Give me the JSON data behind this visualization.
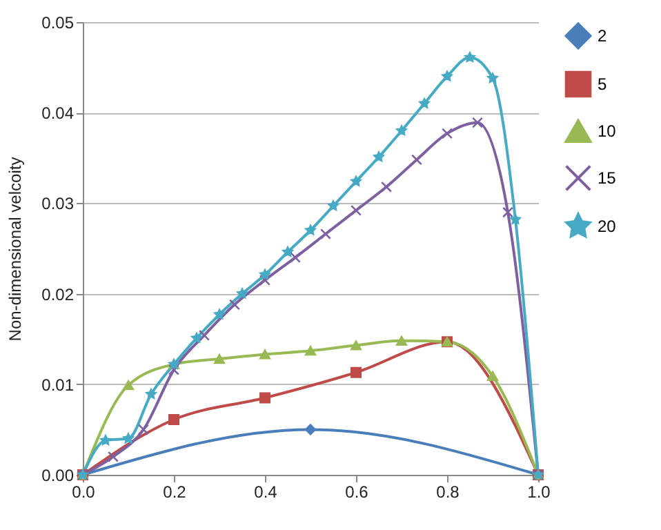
{
  "chart_data": {
    "type": "line",
    "ylabel": "Non-dimensional velcoity",
    "xlim": [
      0,
      1
    ],
    "ylim": [
      0,
      0.05
    ],
    "xticks": [
      {
        "value": 0,
        "label": "0.0"
      },
      {
        "value": 0.2,
        "label": "0.2"
      },
      {
        "value": 0.4,
        "label": "0.4"
      },
      {
        "value": 0.6,
        "label": "0.6"
      },
      {
        "value": 0.8,
        "label": "0.8"
      },
      {
        "value": 1,
        "label": "1.0"
      }
    ],
    "yticks": [
      {
        "value": 0,
        "label": "0.00"
      },
      {
        "value": 0.01,
        "label": "0.01"
      },
      {
        "value": 0.02,
        "label": "0.02"
      },
      {
        "value": 0.03,
        "label": "0.03"
      },
      {
        "value": 0.04,
        "label": "0.04"
      },
      {
        "value": 0.05,
        "label": "0.05"
      }
    ],
    "grid": "y",
    "legend": "right",
    "line_style": "solid",
    "series": [
      {
        "name": "2",
        "color": "#4a7ebb",
        "marker": "diamond",
        "x": [
          0,
          0.5,
          1
        ],
        "values": [
          0,
          0.005,
          0
        ]
      },
      {
        "name": "5",
        "color": "#be4b48",
        "marker": "square",
        "x": [
          0,
          0.2,
          0.4,
          0.6,
          0.8,
          1
        ],
        "values": [
          0,
          0.0061,
          0.0085,
          0.0113,
          0.0147,
          0
        ]
      },
      {
        "name": "10",
        "color": "#98b954",
        "marker": "triangle",
        "x": [
          0,
          0.1,
          0.2,
          0.3,
          0.4,
          0.5,
          0.6,
          0.7,
          0.8,
          0.9,
          1
        ],
        "values": [
          0,
          0.0099,
          0.0122,
          0.0128,
          0.0133,
          0.0137,
          0.0143,
          0.0148,
          0.0147,
          0.0109,
          0
        ]
      },
      {
        "name": "15",
        "color": "#7d60a0",
        "marker": "cross",
        "x": [
          0,
          0.0667,
          0.1333,
          0.2,
          0.2667,
          0.3333,
          0.4,
          0.4667,
          0.5333,
          0.6,
          0.6667,
          0.7333,
          0.8,
          0.8667,
          0.9333,
          1
        ],
        "values": [
          0,
          0.002,
          0.005,
          0.0116,
          0.0154,
          0.0188,
          0.0215,
          0.024,
          0.0266,
          0.0292,
          0.0318,
          0.0348,
          0.0377,
          0.0389,
          0.029,
          0
        ]
      },
      {
        "name": "20",
        "color": "#46aac5",
        "marker": "star",
        "x": [
          0,
          0.05,
          0.1,
          0.15,
          0.2,
          0.25,
          0.3,
          0.35,
          0.4,
          0.45,
          0.5,
          0.55,
          0.6,
          0.65,
          0.7,
          0.75,
          0.8,
          0.85,
          0.9,
          0.95,
          1
        ],
        "values": [
          0,
          0.0038,
          0.004,
          0.0089,
          0.0122,
          0.0151,
          0.0177,
          0.02,
          0.0221,
          0.0246,
          0.027,
          0.0297,
          0.0324,
          0.0351,
          0.038,
          0.041,
          0.044,
          0.0461,
          0.0438,
          0.0282,
          0
        ]
      }
    ]
  }
}
